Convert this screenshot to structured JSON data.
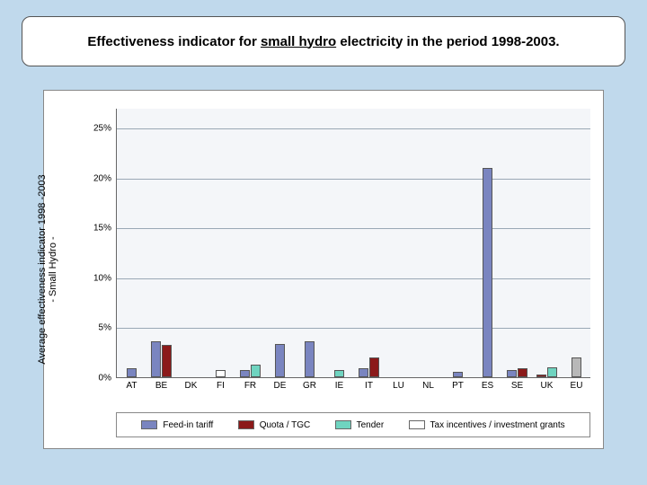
{
  "title": {
    "prefix": "Effectiveness indicator for ",
    "underlined": "small hydro",
    "suffix": " electricity in the period 1998-2003."
  },
  "chart": {
    "type": "bar",
    "background_color": "#f4f6f9",
    "grid_color": "#9aa8b5",
    "frame_color": "#888888",
    "ylabel_line1": "Average effectiveness indicator 1998 -2003",
    "ylabel_line2": "- Small Hydro -",
    "ymin": 0,
    "ymax": 27,
    "yticks": [
      {
        "value": 0,
        "label": "0%"
      },
      {
        "value": 5,
        "label": "5%"
      },
      {
        "value": 10,
        "label": "10%"
      },
      {
        "value": 15,
        "label": "15%"
      },
      {
        "value": 20,
        "label": "20%"
      },
      {
        "value": 25,
        "label": "25%"
      }
    ],
    "series": {
      "feed_in_tariff": {
        "label": "Feed-in tariff",
        "color": "#7a85c0"
      },
      "quota_tgc": {
        "label": "Quota / TGC",
        "color": "#8b1a1a"
      },
      "tender": {
        "label": "Tender",
        "color": "#6fd4c0"
      },
      "tax_inv": {
        "label": "Tax incentives / investment grants",
        "color": "#ffffff"
      }
    },
    "categories": [
      {
        "label": "AT",
        "bars": [
          {
            "series": "feed_in_tariff",
            "value": 0.9
          }
        ]
      },
      {
        "label": "BE",
        "bars": [
          {
            "series": "feed_in_tariff",
            "value": 3.6
          },
          {
            "series": "quota_tgc",
            "value": 3.2
          }
        ]
      },
      {
        "label": "DK",
        "bars": [
          {
            "series": "feed_in_tariff",
            "value": 0.0
          }
        ]
      },
      {
        "label": "FI",
        "bars": [
          {
            "series": "tax_inv",
            "value": 0.7
          }
        ]
      },
      {
        "label": "FR",
        "bars": [
          {
            "series": "feed_in_tariff",
            "value": 0.7
          },
          {
            "series": "tender",
            "value": 1.3
          }
        ]
      },
      {
        "label": "DE",
        "bars": [
          {
            "series": "feed_in_tariff",
            "value": 3.3
          }
        ]
      },
      {
        "label": "GR",
        "bars": [
          {
            "series": "feed_in_tariff",
            "value": 3.6
          }
        ]
      },
      {
        "label": "IE",
        "bars": [
          {
            "series": "tender",
            "value": 0.7
          }
        ]
      },
      {
        "label": "IT",
        "bars": [
          {
            "series": "feed_in_tariff",
            "value": 0.9
          },
          {
            "series": "quota_tgc",
            "value": 2.0
          }
        ]
      },
      {
        "label": "LU",
        "bars": [
          {
            "series": "feed_in_tariff",
            "value": 0.0
          }
        ]
      },
      {
        "label": "NL",
        "bars": [
          {
            "series": "feed_in_tariff",
            "value": 0.0
          }
        ]
      },
      {
        "label": "PT",
        "bars": [
          {
            "series": "feed_in_tariff",
            "value": 0.5
          }
        ]
      },
      {
        "label": "ES",
        "bars": [
          {
            "series": "feed_in_tariff",
            "value": 21.0
          }
        ]
      },
      {
        "label": "SE",
        "bars": [
          {
            "series": "feed_in_tariff",
            "value": 0.7
          },
          {
            "series": "quota_tgc",
            "value": 0.9
          }
        ]
      },
      {
        "label": "UK",
        "bars": [
          {
            "series": "quota_tgc",
            "value": 0.3
          },
          {
            "series": "tender",
            "value": 1.0
          }
        ]
      },
      {
        "label": "EU",
        "bars": [
          {
            "series": "eu",
            "value": 2.0,
            "color": "#b8b8b8"
          }
        ]
      }
    ],
    "title_fontsize": 15,
    "label_fontsize": 11
  }
}
